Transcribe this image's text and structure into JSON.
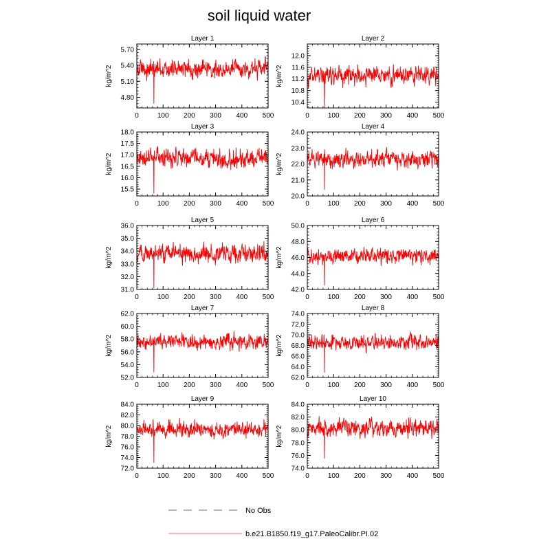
{
  "figure": {
    "title": "soil liquid water"
  },
  "colors": {
    "series": "#ff0000",
    "no_obs": "#9b9bd8",
    "model_legend": "#f08a8a"
  },
  "legend": [
    {
      "label": "No Obs",
      "style": "dashed"
    },
    {
      "label": "b.e21.B1850.f19_g17.PaleoCalibr.PI.02",
      "style": "solid"
    }
  ],
  "chart_data": [
    {
      "type": "line",
      "title": "Layer 1",
      "ylabel": "kg/m^2",
      "xlim": [
        0,
        500
      ],
      "xticks": [
        0,
        100,
        200,
        300,
        400,
        500
      ],
      "ylim": [
        4.6,
        5.8
      ],
      "yticks": [
        "4.80",
        "5.10",
        "5.40",
        "5.70"
      ],
      "series": [
        {
          "mean": 5.33,
          "spread": 0.15,
          "min_at": 65,
          "min_value": 4.68
        }
      ]
    },
    {
      "type": "line",
      "title": "Layer 2",
      "ylabel": "kg/m^2",
      "xlim": [
        0,
        500
      ],
      "xticks": [
        0,
        100,
        200,
        300,
        400,
        500
      ],
      "ylim": [
        10.2,
        12.4
      ],
      "yticks": [
        "10.4",
        "10.8",
        "11.2",
        "11.6",
        "12.0"
      ],
      "series": [
        {
          "mean": 11.33,
          "spread": 0.27,
          "min_at": 65,
          "min_value": 10.2
        }
      ]
    },
    {
      "type": "line",
      "title": "Layer 3",
      "ylabel": "kg/m^2",
      "xlim": [
        0,
        500
      ],
      "xticks": [
        0,
        100,
        200,
        300,
        400,
        500
      ],
      "ylim": [
        15.2,
        18.0
      ],
      "yticks": [
        "15.5",
        "16.0",
        "16.5",
        "17.0",
        "17.5",
        "18.0"
      ],
      "series": [
        {
          "mean": 16.85,
          "spread": 0.35,
          "min_at": 65,
          "min_value": 15.3
        }
      ]
    },
    {
      "type": "line",
      "title": "Layer 4",
      "ylabel": "kg/m^2",
      "xlim": [
        0,
        500
      ],
      "xticks": [
        0,
        100,
        200,
        300,
        400,
        500
      ],
      "ylim": [
        20.0,
        24.0
      ],
      "yticks": [
        "20.0",
        "21.0",
        "22.0",
        "23.0",
        "24.0"
      ],
      "series": [
        {
          "mean": 22.3,
          "spread": 0.45,
          "min_at": 65,
          "min_value": 20.4
        }
      ]
    },
    {
      "type": "line",
      "title": "Layer 5",
      "ylabel": "kg/m^2",
      "xlim": [
        0,
        500
      ],
      "xticks": [
        0,
        100,
        200,
        300,
        400,
        500
      ],
      "ylim": [
        31.0,
        36.0
      ],
      "yticks": [
        "31.0",
        "32.0",
        "33.0",
        "34.0",
        "35.0",
        "36.0"
      ],
      "series": [
        {
          "mean": 33.8,
          "spread": 0.6,
          "min_at": 65,
          "min_value": 31.1
        }
      ]
    },
    {
      "type": "line",
      "title": "Layer 6",
      "ylabel": "kg/m^2",
      "xlim": [
        0,
        500
      ],
      "xticks": [
        0,
        100,
        200,
        300,
        400,
        500
      ],
      "ylim": [
        42.0,
        50.0
      ],
      "yticks": [
        "42.0",
        "44.0",
        "46.0",
        "48.0",
        "50.0"
      ],
      "series": [
        {
          "mean": 46.2,
          "spread": 0.85,
          "min_at": 65,
          "min_value": 42.5
        }
      ]
    },
    {
      "type": "line",
      "title": "Layer 7",
      "ylabel": "kg/m^2",
      "xlim": [
        0,
        500
      ],
      "xticks": [
        0,
        100,
        200,
        300,
        400,
        500
      ],
      "ylim": [
        52.0,
        62.0
      ],
      "yticks": [
        "52.0",
        "54.0",
        "56.0",
        "58.0",
        "60.0",
        "62.0"
      ],
      "series": [
        {
          "mean": 57.6,
          "spread": 1.0,
          "min_at": 65,
          "min_value": 52.8
        }
      ]
    },
    {
      "type": "line",
      "title": "Layer 8",
      "ylabel": "kg/m^2",
      "xlim": [
        0,
        500
      ],
      "xticks": [
        0,
        100,
        200,
        300,
        400,
        500
      ],
      "ylim": [
        62.0,
        74.0
      ],
      "yticks": [
        "62.0",
        "64.0",
        "66.0",
        "68.0",
        "70.0",
        "72.0",
        "74.0"
      ],
      "series": [
        {
          "mean": 68.5,
          "spread": 1.2,
          "min_at": 65,
          "min_value": 62.9
        }
      ]
    },
    {
      "type": "line",
      "title": "Layer 9",
      "ylabel": "kg/m^2",
      "xlim": [
        0,
        500
      ],
      "xticks": [
        0,
        100,
        200,
        300,
        400,
        500
      ],
      "ylim": [
        72.0,
        84.0
      ],
      "yticks": [
        "72.0",
        "74.0",
        "76.0",
        "78.0",
        "80.0",
        "82.0",
        "84.0"
      ],
      "series": [
        {
          "mean": 79.3,
          "spread": 1.3,
          "min_at": 65,
          "min_value": 73.0
        }
      ]
    },
    {
      "type": "line",
      "title": "Layer 10",
      "ylabel": "kg/m^2",
      "xlim": [
        0,
        500
      ],
      "xticks": [
        0,
        100,
        200,
        300,
        400,
        500
      ],
      "ylim": [
        74.0,
        84.0
      ],
      "yticks": [
        "74.0",
        "76.0",
        "78.0",
        "80.0",
        "82.0",
        "84.0"
      ],
      "series": [
        {
          "mean": 80.2,
          "spread": 1.2,
          "min_at": 65,
          "min_value": 75.5
        }
      ]
    }
  ]
}
